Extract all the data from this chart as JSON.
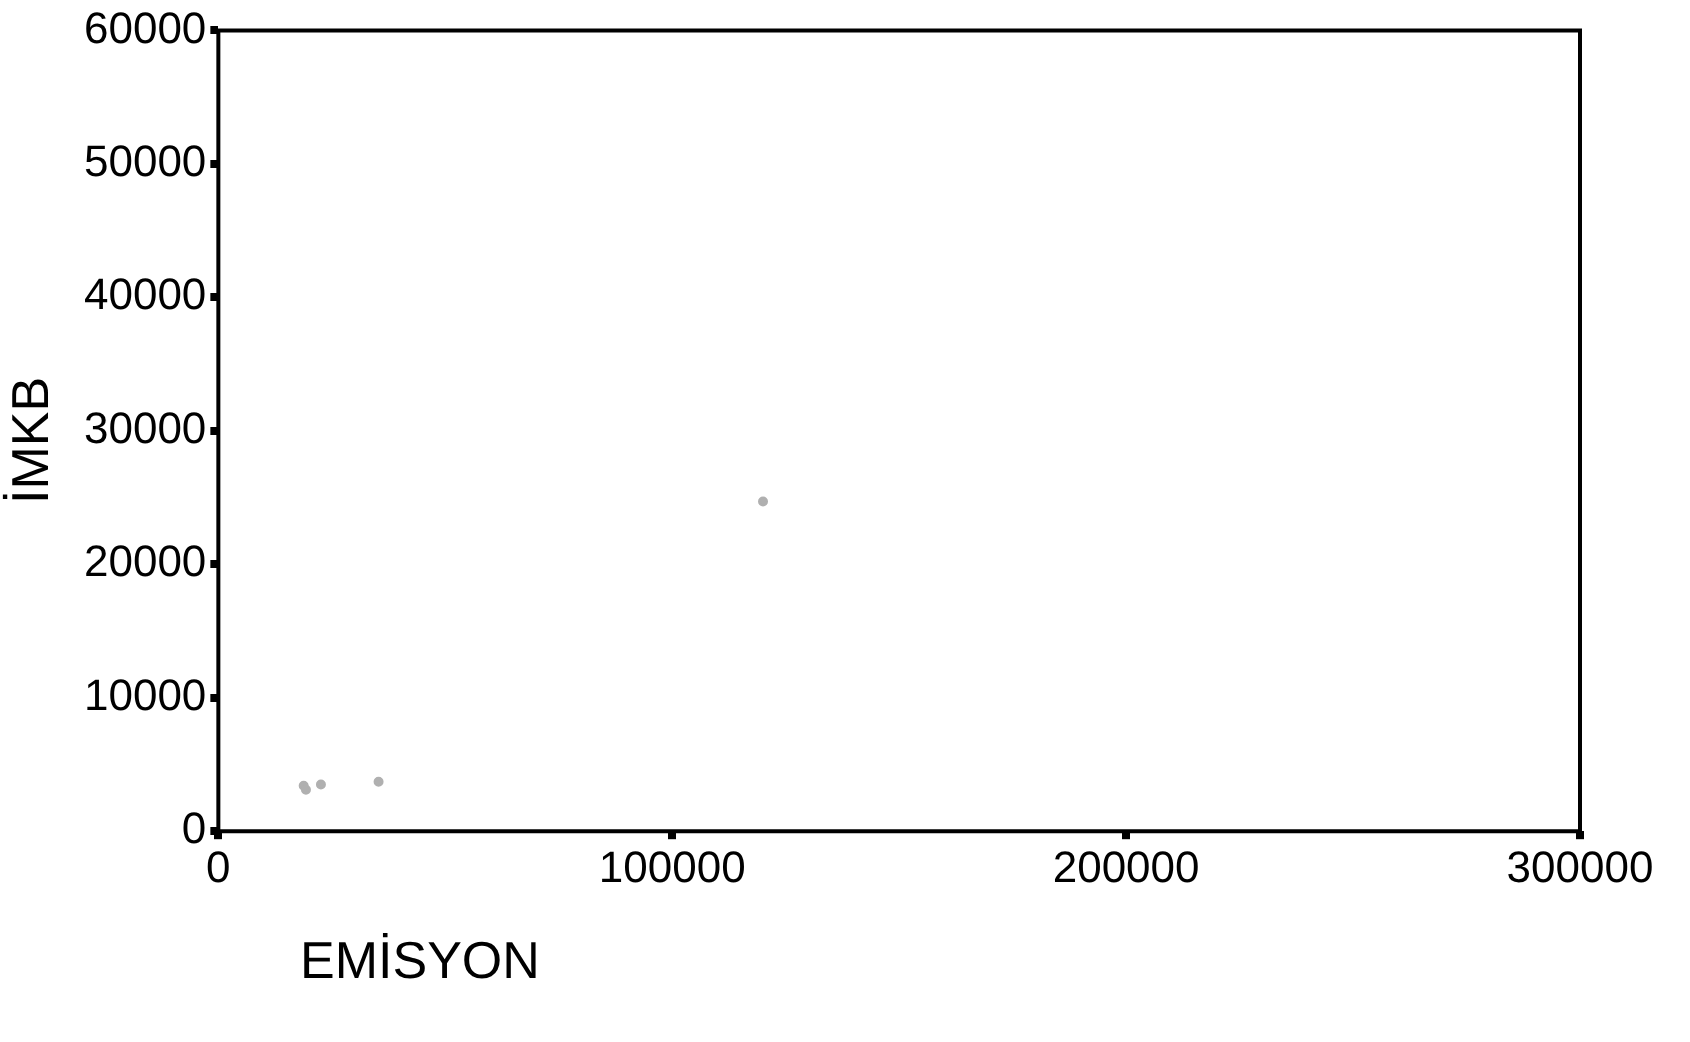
{
  "chart_data": {
    "type": "scatter",
    "xlabel": "EMİSYON",
    "ylabel": "İMKB",
    "x": [
      18800,
      19300,
      22600,
      35300,
      120000
    ],
    "values": [
      3400,
      3100,
      3500,
      3700,
      24700
    ],
    "color": "#b0b0b0",
    "marker": "circle",
    "xlim": [
      0,
      300000
    ],
    "xticks": [
      0,
      100000,
      200000,
      300000
    ],
    "ylim": [
      0,
      60000
    ],
    "yticks": [
      0,
      10000,
      20000,
      30000,
      40000,
      50000,
      60000
    ],
    "grid": false,
    "legend": false
  }
}
